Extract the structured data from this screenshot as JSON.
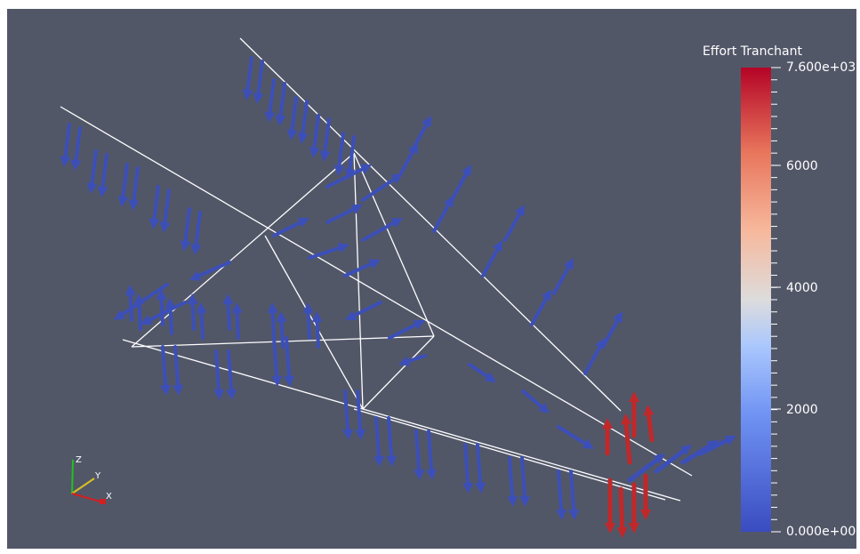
{
  "colorbar": {
    "title": "Effort Tranchant",
    "max_label": "7.600e+03",
    "ticks": [
      "6000",
      "4000",
      "2000"
    ],
    "min_label": "0.000e+00",
    "colors": [
      "#3a4cc0",
      "#6f92f3",
      "#aac7fd",
      "#dddcdc",
      "#f7b89c",
      "#e7745b",
      "#b40426"
    ]
  },
  "orientation_axes": {
    "z_label": "Z",
    "y_label": "Y",
    "x_label": "X",
    "z_color": "#20c020",
    "y_color": "#d8c020",
    "x_color": "#d02020"
  },
  "colors": {
    "background": "#525768",
    "glyph_low": "#3c4fb8",
    "glyph_high": "#c0282a",
    "mesh_line": "#ffffff"
  }
}
